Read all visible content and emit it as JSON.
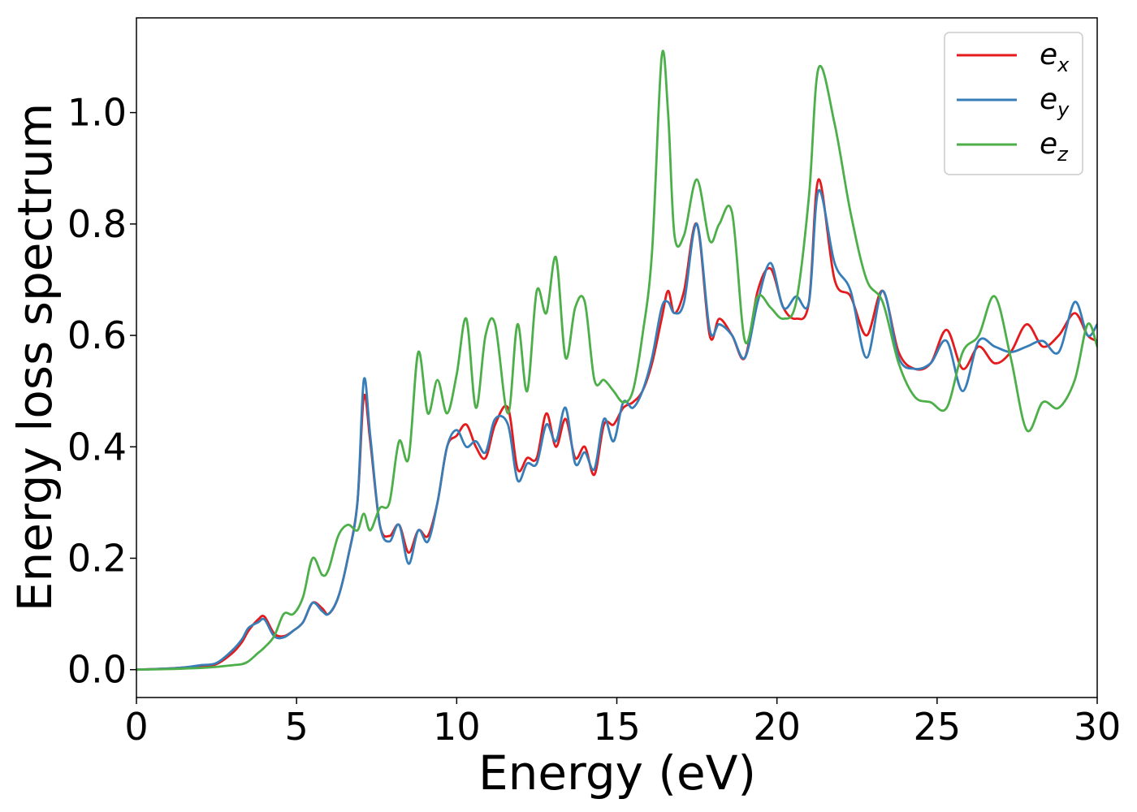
{
  "chart_data": {
    "type": "line",
    "title": "",
    "xlabel": "Energy (eV)",
    "ylabel": "Energy loss spectrum",
    "xlim": [
      0,
      30
    ],
    "ylim": [
      -0.05,
      1.17
    ],
    "xticks": [
      0,
      5,
      10,
      15,
      20,
      25,
      30
    ],
    "xtick_labels": [
      "0",
      "5",
      "10",
      "15",
      "20",
      "25",
      "30"
    ],
    "yticks": [
      0.0,
      0.2,
      0.4,
      0.6,
      0.8,
      1.0
    ],
    "ytick_labels": [
      "0.0",
      "0.2",
      "0.4",
      "0.6",
      "0.8",
      "1.0"
    ],
    "grid": false,
    "legend_position": "top-right",
    "series": [
      {
        "name": "e_x",
        "legend_base": "e",
        "legend_sub": "x",
        "color": "#e41a1c",
        "x": [
          0,
          1,
          1.5,
          2,
          2.5,
          3,
          3.3,
          3.5,
          3.8,
          4,
          4.3,
          4.6,
          4.9,
          5.2,
          5.5,
          5.8,
          6,
          6.3,
          6.6,
          6.9,
          7.1,
          7.3,
          7.6,
          7.9,
          8.2,
          8.5,
          8.8,
          9.1,
          9.4,
          9.7,
          10,
          10.3,
          10.6,
          10.9,
          11.2,
          11.6,
          11.9,
          12.2,
          12.5,
          12.8,
          13.1,
          13.4,
          13.7,
          14,
          14.3,
          14.6,
          14.9,
          15.2,
          15.5,
          15.8,
          16.1,
          16.4,
          16.6,
          16.8,
          17.1,
          17.5,
          17.9,
          18.2,
          18.6,
          19,
          19.4,
          19.8,
          20.2,
          20.6,
          21,
          21.3,
          21.8,
          22.3,
          22.8,
          23.3,
          23.8,
          24.3,
          24.8,
          25.3,
          25.8,
          26.3,
          26.8,
          27.3,
          27.8,
          28.3,
          28.8,
          29.3,
          29.7,
          30
        ],
        "y": [
          0,
          0.002,
          0.004,
          0.006,
          0.01,
          0.03,
          0.05,
          0.07,
          0.09,
          0.095,
          0.065,
          0.06,
          0.07,
          0.085,
          0.12,
          0.11,
          0.1,
          0.13,
          0.2,
          0.3,
          0.49,
          0.41,
          0.26,
          0.24,
          0.26,
          0.21,
          0.25,
          0.24,
          0.3,
          0.4,
          0.42,
          0.44,
          0.4,
          0.38,
          0.44,
          0.47,
          0.36,
          0.38,
          0.38,
          0.46,
          0.4,
          0.45,
          0.38,
          0.4,
          0.35,
          0.44,
          0.44,
          0.47,
          0.48,
          0.5,
          0.55,
          0.63,
          0.68,
          0.64,
          0.68,
          0.8,
          0.6,
          0.63,
          0.6,
          0.56,
          0.68,
          0.72,
          0.65,
          0.63,
          0.66,
          0.88,
          0.7,
          0.67,
          0.6,
          0.68,
          0.57,
          0.54,
          0.55,
          0.61,
          0.54,
          0.58,
          0.55,
          0.57,
          0.62,
          0.58,
          0.6,
          0.64,
          0.6,
          0.59
        ]
      },
      {
        "name": "e_y",
        "legend_base": "e",
        "legend_sub": "y",
        "color": "#377eb8",
        "x": [
          0,
          1,
          1.5,
          2,
          2.5,
          3,
          3.3,
          3.5,
          3.8,
          4,
          4.3,
          4.6,
          4.9,
          5.2,
          5.5,
          5.8,
          6,
          6.3,
          6.6,
          6.9,
          7.1,
          7.3,
          7.6,
          7.9,
          8.2,
          8.5,
          8.8,
          9.1,
          9.4,
          9.7,
          10,
          10.3,
          10.6,
          10.9,
          11.2,
          11.6,
          11.9,
          12.2,
          12.5,
          12.8,
          13.1,
          13.4,
          13.7,
          14,
          14.3,
          14.6,
          14.9,
          15.2,
          15.5,
          15.8,
          16.1,
          16.4,
          16.6,
          16.8,
          17.1,
          17.5,
          17.9,
          18.2,
          18.6,
          19,
          19.4,
          19.8,
          20.2,
          20.6,
          21,
          21.3,
          21.8,
          22.3,
          22.8,
          23.3,
          23.8,
          24.3,
          24.8,
          25.3,
          25.8,
          26.3,
          26.8,
          27.3,
          27.8,
          28.3,
          28.8,
          29.3,
          29.7,
          30
        ],
        "y": [
          0,
          0.002,
          0.004,
          0.008,
          0.012,
          0.035,
          0.055,
          0.075,
          0.085,
          0.09,
          0.06,
          0.058,
          0.07,
          0.085,
          0.12,
          0.105,
          0.1,
          0.13,
          0.2,
          0.3,
          0.52,
          0.42,
          0.26,
          0.23,
          0.26,
          0.19,
          0.25,
          0.23,
          0.3,
          0.4,
          0.43,
          0.4,
          0.41,
          0.39,
          0.45,
          0.44,
          0.34,
          0.37,
          0.37,
          0.44,
          0.41,
          0.47,
          0.37,
          0.39,
          0.36,
          0.45,
          0.41,
          0.48,
          0.47,
          0.5,
          0.56,
          0.65,
          0.66,
          0.64,
          0.66,
          0.8,
          0.61,
          0.62,
          0.6,
          0.56,
          0.66,
          0.73,
          0.65,
          0.67,
          0.66,
          0.86,
          0.73,
          0.68,
          0.56,
          0.68,
          0.56,
          0.54,
          0.55,
          0.59,
          0.5,
          0.59,
          0.58,
          0.57,
          0.58,
          0.59,
          0.57,
          0.66,
          0.6,
          0.62
        ]
      },
      {
        "name": "e_z",
        "legend_base": "e",
        "legend_sub": "z",
        "color": "#4daf4a",
        "x": [
          0,
          1,
          1.5,
          2,
          2.5,
          3,
          3.3,
          3.5,
          3.8,
          4,
          4.3,
          4.6,
          4.9,
          5.2,
          5.5,
          5.8,
          6,
          6.3,
          6.6,
          6.9,
          7.1,
          7.3,
          7.6,
          7.9,
          8.2,
          8.5,
          8.8,
          9.1,
          9.4,
          9.7,
          10,
          10.3,
          10.6,
          10.9,
          11.2,
          11.6,
          11.9,
          12.2,
          12.5,
          12.8,
          13.1,
          13.4,
          13.7,
          14,
          14.3,
          14.6,
          14.9,
          15.2,
          15.5,
          15.8,
          16.1,
          16.4,
          16.6,
          16.8,
          17.1,
          17.5,
          17.9,
          18.2,
          18.6,
          19,
          19.4,
          19.8,
          20.2,
          20.6,
          21,
          21.3,
          21.8,
          22.3,
          22.8,
          23.3,
          23.8,
          24.3,
          24.8,
          25.3,
          25.8,
          26.3,
          26.8,
          27.3,
          27.8,
          28.3,
          28.8,
          29.3,
          29.7,
          30
        ],
        "y": [
          0,
          0.001,
          0.002,
          0.003,
          0.005,
          0.008,
          0.01,
          0.015,
          0.03,
          0.04,
          0.06,
          0.1,
          0.1,
          0.13,
          0.2,
          0.17,
          0.18,
          0.24,
          0.26,
          0.25,
          0.28,
          0.25,
          0.29,
          0.3,
          0.41,
          0.38,
          0.57,
          0.46,
          0.52,
          0.46,
          0.53,
          0.63,
          0.47,
          0.6,
          0.62,
          0.46,
          0.62,
          0.5,
          0.68,
          0.64,
          0.74,
          0.56,
          0.65,
          0.66,
          0.52,
          0.52,
          0.5,
          0.48,
          0.5,
          0.6,
          0.75,
          1.1,
          1.0,
          0.78,
          0.78,
          0.88,
          0.77,
          0.8,
          0.82,
          0.59,
          0.67,
          0.65,
          0.63,
          0.66,
          0.85,
          1.08,
          0.98,
          0.82,
          0.7,
          0.66,
          0.55,
          0.49,
          0.48,
          0.47,
          0.57,
          0.6,
          0.67,
          0.56,
          0.43,
          0.48,
          0.47,
          0.52,
          0.62,
          0.58
        ]
      }
    ]
  }
}
